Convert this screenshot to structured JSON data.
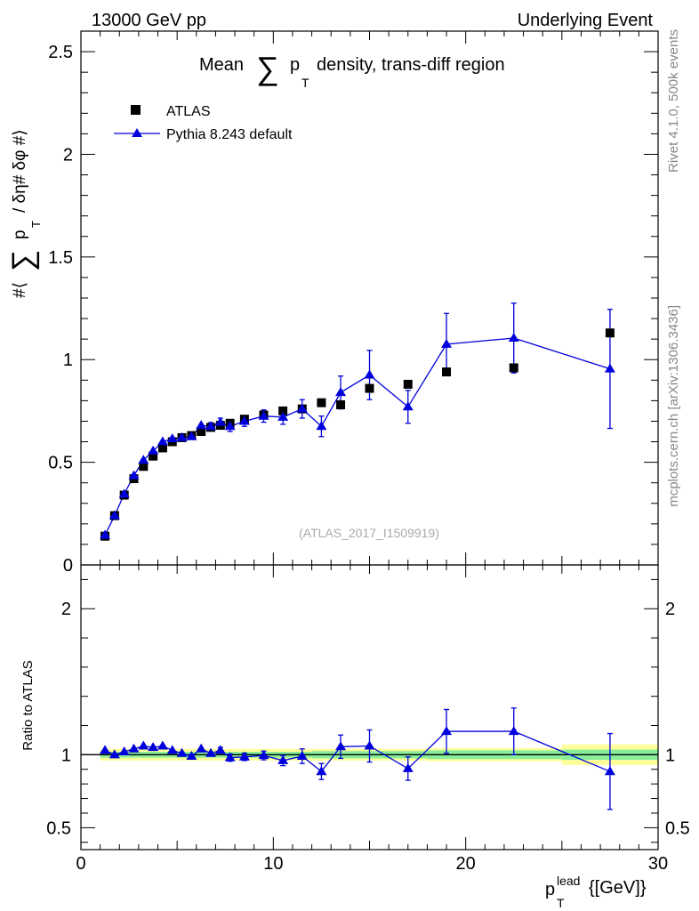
{
  "header": {
    "left": "13000 GeV pp",
    "right": "Underlying Event"
  },
  "side": {
    "rivet": "Rivet 4.1.0,  500k events",
    "mcplots": "mcplots.cern.ch [arXiv:1306.3436]"
  },
  "colors": {
    "data": "#000000",
    "mc": "#0000dd",
    "band_green": "#88ee99",
    "band_yellow": "#ffff99"
  },
  "chart_data": [
    {
      "type": "scatter",
      "title": "Mean ∑ p_T density, trans-diff region",
      "title_parts": {
        "pre": "Mean",
        "sum": "∑",
        "p": "p",
        "sub": "T",
        "post": "density, trans-diff region"
      },
      "ylabel_parts": {
        "pre": "#⟨",
        "sum": "∑",
        "p": "p",
        "sub": "T",
        "post": "/ δη# δφ #⟩"
      },
      "watermark": "(ATLAS_2017_I1509919)",
      "xlim": [
        0,
        30
      ],
      "ylim": [
        0,
        2.6
      ],
      "yticks": [
        0,
        0.5,
        1,
        1.5,
        2,
        2.5
      ],
      "ytick_labels": [
        "0",
        "0.5",
        "1",
        "1.5",
        "2",
        "2.5"
      ],
      "legend_position": "top-left",
      "legend": [
        "ATLAS",
        "Pythia 8.243 default"
      ],
      "series": [
        {
          "name": "ATLAS",
          "marker": "square",
          "x": [
            1.25,
            1.75,
            2.25,
            2.75,
            3.25,
            3.75,
            4.25,
            4.75,
            5.25,
            5.75,
            6.25,
            6.75,
            7.25,
            7.75,
            8.5,
            9.5,
            10.5,
            11.5,
            12.5,
            13.5,
            15,
            17,
            19,
            22.5,
            27.5
          ],
          "y": [
            0.14,
            0.24,
            0.34,
            0.42,
            0.48,
            0.53,
            0.57,
            0.6,
            0.62,
            0.63,
            0.65,
            0.67,
            0.68,
            0.69,
            0.71,
            0.73,
            0.75,
            0.76,
            0.79,
            0.78,
            0.86,
            0.88,
            0.94,
            0.96,
            1.13
          ]
        },
        {
          "name": "Pythia 8.243 default",
          "marker": "triangle",
          "x": [
            1.25,
            1.75,
            2.25,
            2.75,
            3.25,
            3.75,
            4.25,
            4.75,
            5.25,
            5.75,
            6.25,
            6.75,
            7.25,
            7.75,
            8.5,
            9.5,
            10.5,
            11.5,
            12.5,
            13.5,
            15,
            17,
            19,
            22.5,
            27.5
          ],
          "y": [
            0.145,
            0.24,
            0.345,
            0.435,
            0.51,
            0.555,
            0.6,
            0.615,
            0.62,
            0.625,
            0.68,
            0.675,
            0.695,
            0.675,
            0.7,
            0.725,
            0.72,
            0.76,
            0.675,
            0.84,
            0.925,
            0.77,
            1.075,
            1.105,
            0.955
          ],
          "yerr": [
            0.005,
            0.005,
            0.008,
            0.008,
            0.01,
            0.01,
            0.012,
            0.012,
            0.012,
            0.015,
            0.015,
            0.018,
            0.02,
            0.025,
            0.025,
            0.03,
            0.035,
            0.045,
            0.05,
            0.08,
            0.12,
            0.08,
            0.15,
            0.17,
            0.29
          ]
        }
      ]
    },
    {
      "type": "scatter",
      "title": "",
      "ylabel": "Ratio to ATLAS",
      "xlabel_parts": {
        "p": "p",
        "sup": "lead",
        "sub": "T",
        "unit": "{[GeV]}"
      },
      "xlim": [
        0,
        30
      ],
      "ylim": [
        0.35,
        2.3
      ],
      "xticks": [
        0,
        10,
        20,
        30
      ],
      "xtick_labels": [
        "0",
        "10",
        "20",
        "30"
      ],
      "yticks": [
        0.5,
        1,
        2
      ],
      "ytick_labels": [
        "0.5",
        "1",
        "2"
      ],
      "bands": [
        {
          "x0": 1.0,
          "x1": 12.0,
          "yellow": [
            0.96,
            1.04
          ],
          "green": [
            0.98,
            1.02
          ]
        },
        {
          "x0": 12.0,
          "x1": 18.0,
          "yellow": [
            0.96,
            1.04
          ],
          "green": [
            0.975,
            1.025
          ]
        },
        {
          "x0": 18.0,
          "x1": 25.0,
          "yellow": [
            0.955,
            1.045
          ],
          "green": [
            0.97,
            1.03
          ]
        },
        {
          "x0": 25.0,
          "x1": 30.0,
          "yellow": [
            0.93,
            1.07
          ],
          "green": [
            0.965,
            1.035
          ]
        }
      ],
      "series": [
        {
          "name": "Pythia 8.243 default / ATLAS",
          "marker": "triangle",
          "x": [
            1.25,
            1.75,
            2.25,
            2.75,
            3.25,
            3.75,
            4.25,
            4.75,
            5.25,
            5.75,
            6.25,
            6.75,
            7.25,
            7.75,
            8.5,
            9.5,
            10.5,
            11.5,
            12.5,
            13.5,
            15,
            17,
            19,
            22.5,
            27.5
          ],
          "y": [
            1.03,
            1.0,
            1.02,
            1.04,
            1.06,
            1.05,
            1.06,
            1.03,
            1.01,
            0.99,
            1.04,
            1.01,
            1.03,
            0.98,
            0.985,
            0.995,
            0.96,
            0.99,
            0.885,
            1.055,
            1.06,
            0.905,
            1.16,
            1.16,
            0.885
          ],
          "yerr": [
            0.01,
            0.01,
            0.01,
            0.01,
            0.01,
            0.01,
            0.01,
            0.01,
            0.01,
            0.01,
            0.01,
            0.015,
            0.02,
            0.025,
            0.025,
            0.03,
            0.035,
            0.05,
            0.055,
            0.08,
            0.11,
            0.08,
            0.15,
            0.16,
            0.26
          ]
        }
      ]
    }
  ]
}
